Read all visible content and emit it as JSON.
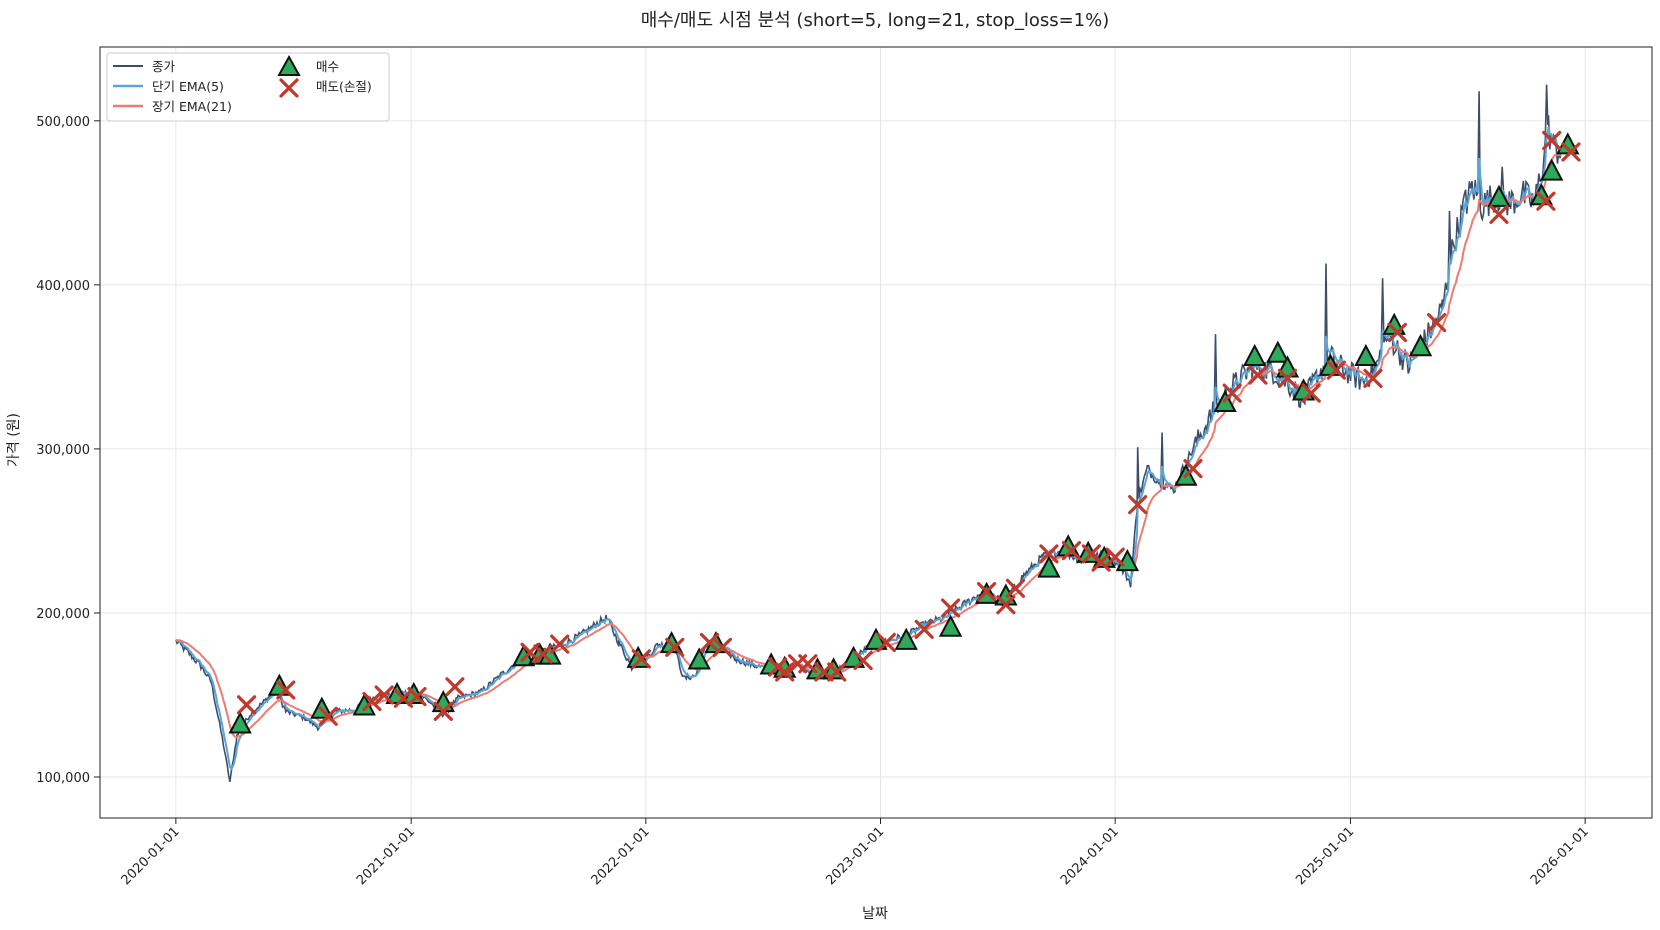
{
  "chart_data": {
    "type": "line",
    "title": "매수/매도 시점 분석 (short=5, long=21, stop_loss=1%)",
    "xlabel": "날짜",
    "ylabel": "가격 (원)",
    "ylim": [
      75000,
      545000
    ],
    "xlim": [
      "2019-09-05",
      "2026-04-15"
    ],
    "x_ticks": [
      "2020-01-01",
      "2021-01-01",
      "2022-01-01",
      "2023-01-01",
      "2024-01-01",
      "2025-01-01",
      "2026-01-01"
    ],
    "y_ticks": [
      100000,
      200000,
      300000,
      400000,
      500000
    ],
    "y_tick_labels": [
      "100,000",
      "200,000",
      "300,000",
      "400,000",
      "500,000"
    ],
    "grid": true,
    "legend_position": "top-left",
    "colors": {
      "close": "#3d4e6b",
      "ema_short": "#5aa5d6",
      "ema_long": "#ee7b72",
      "buy_fill": "#2eaa5a",
      "buy_edge": "#111111",
      "sell": "#c0392b"
    },
    "legend": {
      "close": "종가",
      "ema_short": "단기 EMA(5)",
      "ema_long": "장기 EMA(21)",
      "buy": "매수",
      "sell": "매도(손절)"
    },
    "series_keypoints": [
      [
        "2020-01-01",
        183000
      ],
      [
        "2020-01-20",
        176000
      ],
      [
        "2020-02-10",
        167000
      ],
      [
        "2020-02-25",
        158000
      ],
      [
        "2020-03-05",
        140000
      ],
      [
        "2020-03-15",
        120000
      ],
      [
        "2020-03-25",
        97000
      ],
      [
        "2020-04-05",
        125000
      ],
      [
        "2020-04-25",
        138000
      ],
      [
        "2020-05-20",
        147000
      ],
      [
        "2020-06-05",
        153000
      ],
      [
        "2020-06-20",
        140000
      ],
      [
        "2020-07-20",
        136000
      ],
      [
        "2020-08-10",
        130000
      ],
      [
        "2020-09-05",
        140000
      ],
      [
        "2020-10-05",
        141000
      ],
      [
        "2020-11-01",
        148000
      ],
      [
        "2020-12-01",
        150000
      ],
      [
        "2021-01-10",
        152000
      ],
      [
        "2021-02-01",
        145000
      ],
      [
        "2021-02-20",
        138000
      ],
      [
        "2021-03-15",
        148000
      ],
      [
        "2021-04-20",
        152000
      ],
      [
        "2021-05-20",
        162000
      ],
      [
        "2021-06-20",
        172000
      ],
      [
        "2021-07-20",
        176000
      ],
      [
        "2021-08-20",
        180000
      ],
      [
        "2021-09-20",
        186000
      ],
      [
        "2021-10-15",
        193000
      ],
      [
        "2021-11-01",
        197000
      ],
      [
        "2021-11-20",
        182000
      ],
      [
        "2021-12-10",
        167000
      ],
      [
        "2022-01-01",
        172000
      ],
      [
        "2022-01-20",
        181000
      ],
      [
        "2022-02-15",
        178000
      ],
      [
        "2022-03-01",
        160000
      ],
      [
        "2022-03-20",
        162000
      ],
      [
        "2022-04-05",
        180000
      ],
      [
        "2022-04-25",
        181000
      ],
      [
        "2022-05-20",
        172000
      ],
      [
        "2022-06-20",
        168000
      ],
      [
        "2022-07-20",
        165000
      ],
      [
        "2022-08-20",
        170000
      ],
      [
        "2022-09-20",
        163000
      ],
      [
        "2022-10-20",
        163000
      ],
      [
        "2022-11-15",
        171000
      ],
      [
        "2022-12-10",
        178000
      ],
      [
        "2023-01-10",
        183000
      ],
      [
        "2023-02-10",
        186000
      ],
      [
        "2023-03-10",
        193000
      ],
      [
        "2023-04-10",
        197000
      ],
      [
        "2023-05-10",
        205000
      ],
      [
        "2023-06-10",
        213000
      ],
      [
        "2023-07-10",
        206000
      ],
      [
        "2023-08-10",
        222000
      ],
      [
        "2023-09-10",
        234000
      ],
      [
        "2023-10-10",
        238000
      ],
      [
        "2023-11-10",
        232000
      ],
      [
        "2023-12-10",
        235000
      ],
      [
        "2024-01-01",
        232000
      ],
      [
        "2024-01-15",
        225000
      ],
      [
        "2024-01-25",
        218000
      ],
      [
        "2024-02-05",
        268000
      ],
      [
        "2024-02-20",
        288000
      ],
      [
        "2024-03-10",
        280000
      ],
      [
        "2024-04-01",
        275000
      ],
      [
        "2024-04-15",
        287000
      ],
      [
        "2024-05-01",
        300000
      ],
      [
        "2024-06-01",
        322000
      ],
      [
        "2024-07-01",
        338000
      ],
      [
        "2024-08-01",
        350000
      ],
      [
        "2024-09-01",
        348000
      ],
      [
        "2024-10-01",
        338000
      ],
      [
        "2024-10-20",
        330000
      ],
      [
        "2024-11-10",
        344000
      ],
      [
        "2024-12-01",
        356000
      ],
      [
        "2024-12-20",
        349000
      ],
      [
        "2025-01-20",
        341000
      ],
      [
        "2025-02-10",
        350000
      ],
      [
        "2025-03-01",
        370000
      ],
      [
        "2025-04-01",
        350000
      ],
      [
        "2025-04-20",
        362000
      ],
      [
        "2025-05-10",
        375000
      ],
      [
        "2025-05-25",
        387000
      ],
      [
        "2025-06-10",
        425000
      ],
      [
        "2025-06-25",
        445000
      ],
      [
        "2025-07-10",
        460000
      ],
      [
        "2025-07-25",
        448000
      ],
      [
        "2025-08-15",
        455000
      ],
      [
        "2025-09-05",
        450000
      ],
      [
        "2025-09-25",
        455000
      ],
      [
        "2025-10-15",
        450000
      ],
      [
        "2025-10-25",
        470000
      ],
      [
        "2025-11-05",
        495000
      ],
      [
        "2025-11-15",
        482000
      ],
      [
        "2025-11-25",
        484000
      ]
    ],
    "spikes": [
      [
        "2025-07-20",
        518000
      ],
      [
        "2025-11-03",
        522000
      ],
      [
        "2024-11-25",
        413000
      ],
      [
        "2025-02-20",
        404000
      ],
      [
        "2024-02-05",
        301000
      ],
      [
        "2024-03-15",
        310000
      ],
      [
        "2024-06-05",
        370000
      ],
      [
        "2025-08-25",
        472000
      ],
      [
        "2025-06-05",
        445000
      ],
      [
        "2025-06-30",
        458000
      ]
    ],
    "buy_signals": [
      [
        "2020-04-10",
        132000
      ],
      [
        "2020-06-10",
        155000
      ],
      [
        "2020-08-15",
        141000
      ],
      [
        "2020-10-20",
        143000
      ],
      [
        "2020-12-10",
        150000
      ],
      [
        "2021-01-05",
        150000
      ],
      [
        "2021-02-20",
        145000
      ],
      [
        "2021-06-25",
        173000
      ],
      [
        "2021-07-20",
        174000
      ],
      [
        "2021-08-05",
        174000
      ],
      [
        "2021-12-20",
        172000
      ],
      [
        "2022-02-10",
        181000
      ],
      [
        "2022-03-25",
        171000
      ],
      [
        "2022-04-20",
        181000
      ],
      [
        "2022-07-15",
        168000
      ],
      [
        "2022-08-05",
        166000
      ],
      [
        "2022-09-25",
        165000
      ],
      [
        "2022-10-20",
        165000
      ],
      [
        "2022-11-20",
        172000
      ],
      [
        "2022-12-25",
        183000
      ],
      [
        "2023-02-10",
        183000
      ],
      [
        "2023-04-20",
        191000
      ],
      [
        "2023-06-15",
        211000
      ],
      [
        "2023-07-15",
        210000
      ],
      [
        "2023-09-20",
        227000
      ],
      [
        "2023-10-20",
        240000
      ],
      [
        "2023-11-20",
        236000
      ],
      [
        "2023-12-15",
        233000
      ],
      [
        "2024-01-20",
        231000
      ],
      [
        "2024-04-20",
        283000
      ],
      [
        "2024-06-20",
        328000
      ],
      [
        "2024-08-05",
        356000
      ],
      [
        "2024-09-10",
        358000
      ],
      [
        "2024-09-25",
        349000
      ],
      [
        "2024-10-20",
        335000
      ],
      [
        "2024-12-01",
        350000
      ],
      [
        "2025-01-25",
        356000
      ],
      [
        "2025-03-10",
        375000
      ],
      [
        "2025-04-20",
        362000
      ],
      [
        "2025-08-20",
        453000
      ],
      [
        "2025-10-25",
        454000
      ],
      [
        "2025-11-10",
        469000
      ],
      [
        "2025-12-05",
        485000
      ]
    ],
    "sell_signals": [
      [
        "2020-04-20",
        144000
      ],
      [
        "2020-06-20",
        153000
      ],
      [
        "2020-08-25",
        137000
      ],
      [
        "2020-11-01",
        146000
      ],
      [
        "2020-11-20",
        150000
      ],
      [
        "2020-12-20",
        148000
      ],
      [
        "2021-01-10",
        149000
      ],
      [
        "2021-02-20",
        140000
      ],
      [
        "2021-03-10",
        155000
      ],
      [
        "2021-07-05",
        176000
      ],
      [
        "2021-07-25",
        175000
      ],
      [
        "2021-08-20",
        181000
      ],
      [
        "2021-12-25",
        172000
      ],
      [
        "2022-02-15",
        179000
      ],
      [
        "2022-04-10",
        182000
      ],
      [
        "2022-04-30",
        179000
      ],
      [
        "2022-07-25",
        167000
      ],
      [
        "2022-08-05",
        164000
      ],
      [
        "2022-08-25",
        169000
      ],
      [
        "2022-09-10",
        169000
      ],
      [
        "2022-10-05",
        164000
      ],
      [
        "2022-10-25",
        164000
      ],
      [
        "2022-12-05",
        171000
      ],
      [
        "2023-01-10",
        182000
      ],
      [
        "2023-03-10",
        190000
      ],
      [
        "2023-04-20",
        203000
      ],
      [
        "2023-06-15",
        213000
      ],
      [
        "2023-07-15",
        205000
      ],
      [
        "2023-07-30",
        215000
      ],
      [
        "2023-09-20",
        236000
      ],
      [
        "2023-10-25",
        238000
      ],
      [
        "2023-11-25",
        236000
      ],
      [
        "2023-12-10",
        231000
      ],
      [
        "2024-01-01",
        234000
      ],
      [
        "2024-02-05",
        266000
      ],
      [
        "2024-05-01",
        288000
      ],
      [
        "2024-07-01",
        334000
      ],
      [
        "2024-08-10",
        345000
      ],
      [
        "2024-09-25",
        343000
      ],
      [
        "2024-11-01",
        334000
      ],
      [
        "2024-12-10",
        348000
      ],
      [
        "2025-02-05",
        343000
      ],
      [
        "2025-03-15",
        371000
      ],
      [
        "2025-05-15",
        377000
      ],
      [
        "2025-08-20",
        443000
      ],
      [
        "2025-11-01",
        451000
      ],
      [
        "2025-11-10",
        488000
      ],
      [
        "2025-12-10",
        481000
      ]
    ]
  }
}
